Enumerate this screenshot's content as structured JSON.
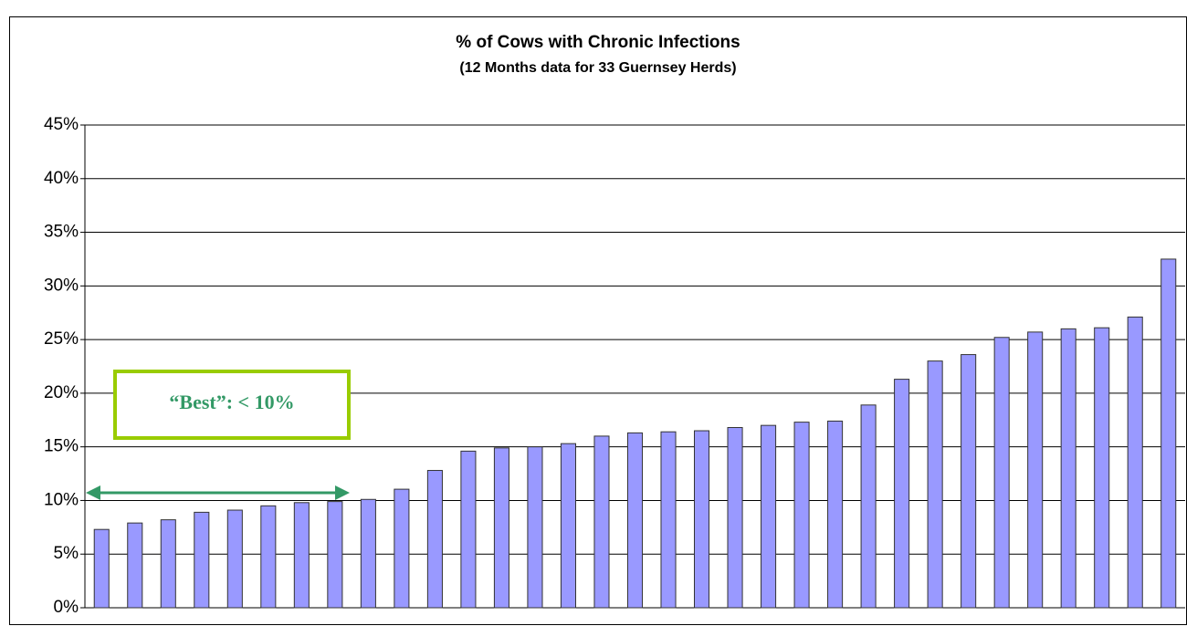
{
  "chart_data": {
    "type": "bar",
    "title": "% of Cows with Chronic Infections",
    "subtitle": "(12 Months data for 33 Guernsey Herds)",
    "annotation": "“Best”:  < 10%",
    "categories": [
      null,
      null,
      null,
      null,
      null,
      null,
      null,
      null,
      null,
      null,
      null,
      null,
      null,
      null,
      null,
      null,
      null,
      null,
      null,
      null,
      null,
      null,
      null,
      null,
      null,
      null,
      null,
      null,
      null,
      null,
      null,
      null,
      null
    ],
    "values": [
      7.3,
      7.9,
      8.2,
      8.9,
      9.1,
      9.5,
      9.8,
      9.9,
      10.1,
      11.05,
      12.8,
      14.6,
      14.9,
      15.0,
      15.3,
      16.0,
      16.3,
      16.4,
      16.5,
      16.8,
      17.0,
      17.3,
      17.4,
      18.9,
      21.3,
      23.0,
      23.6,
      25.2,
      25.7,
      26.0,
      26.1,
      27.1,
      32.5
    ],
    "color": "#9999ff",
    "ylim": [
      0,
      45
    ],
    "yticks": [
      {
        "value": 0,
        "label": "0%"
      },
      {
        "value": 5,
        "label": "5%"
      },
      {
        "value": 10,
        "label": "10%"
      },
      {
        "value": 15,
        "label": "15%"
      },
      {
        "value": 20,
        "label": "20%"
      },
      {
        "value": 25,
        "label": "25%"
      },
      {
        "value": 30,
        "label": "30%"
      },
      {
        "value": 35,
        "label": "35%"
      },
      {
        "value": 40,
        "label": "40%"
      },
      {
        "value": 45,
        "label": "45%"
      }
    ],
    "grid": true
  }
}
